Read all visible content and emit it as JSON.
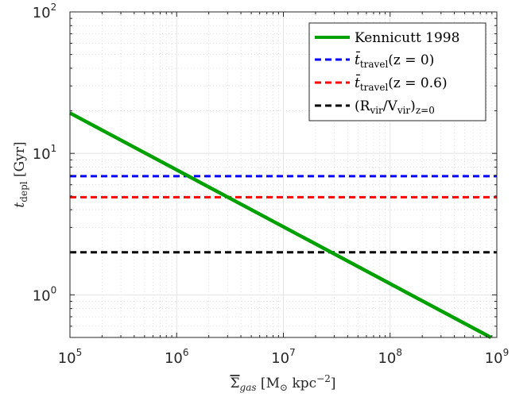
{
  "chart_data": {
    "type": "line",
    "xlabel_parts": [
      "Σ",
      "gas",
      " [M",
      "⊙",
      " kpc",
      "−2",
      "]"
    ],
    "ylabel_parts": [
      "t",
      "depl",
      " [Gyr]"
    ],
    "x_scale": "log",
    "y_scale": "log",
    "xlim": [
      100000,
      1000000000
    ],
    "ylim": [
      0.5,
      100
    ],
    "x_ticks": [
      {
        "value": 100000,
        "base": "10",
        "exp": "5"
      },
      {
        "value": 1000000,
        "base": "10",
        "exp": "6"
      },
      {
        "value": 10000000,
        "base": "10",
        "exp": "7"
      },
      {
        "value": 100000000,
        "base": "10",
        "exp": "8"
      },
      {
        "value": 1000000000,
        "base": "10",
        "exp": "9"
      }
    ],
    "y_ticks": [
      {
        "value": 1,
        "base": "10",
        "exp": "0"
      },
      {
        "value": 10,
        "base": "10",
        "exp": "1"
      },
      {
        "value": 100,
        "base": "10",
        "exp": "2"
      }
    ],
    "grid": true,
    "minor_grid": true,
    "legend_position": "top-right",
    "series": [
      {
        "label_parts": [
          "Kennicutt 1998"
        ],
        "color": "#00a000",
        "dash": "solid",
        "x": [
          100000,
          880000000
        ],
        "y": [
          19.3,
          0.5
        ]
      },
      {
        "label_parts": [
          "t̄",
          "travel",
          "(z = 0)"
        ],
        "color": "#0000ff",
        "dash": "dashed",
        "x": [
          100000,
          1000000000
        ],
        "y": [
          6.9,
          6.9
        ]
      },
      {
        "label_parts": [
          "t̄",
          "travel",
          "(z = 0.6)"
        ],
        "color": "#ff0000",
        "dash": "dashed",
        "x": [
          100000,
          1000000000
        ],
        "y": [
          4.9,
          4.9
        ]
      },
      {
        "label_parts": [
          "(R",
          "vir",
          "/V",
          "vir",
          ")",
          "z=0"
        ],
        "color": "#000000",
        "dash": "dashed",
        "x": [
          100000,
          1000000000
        ],
        "y": [
          2.0,
          2.0
        ]
      }
    ]
  }
}
